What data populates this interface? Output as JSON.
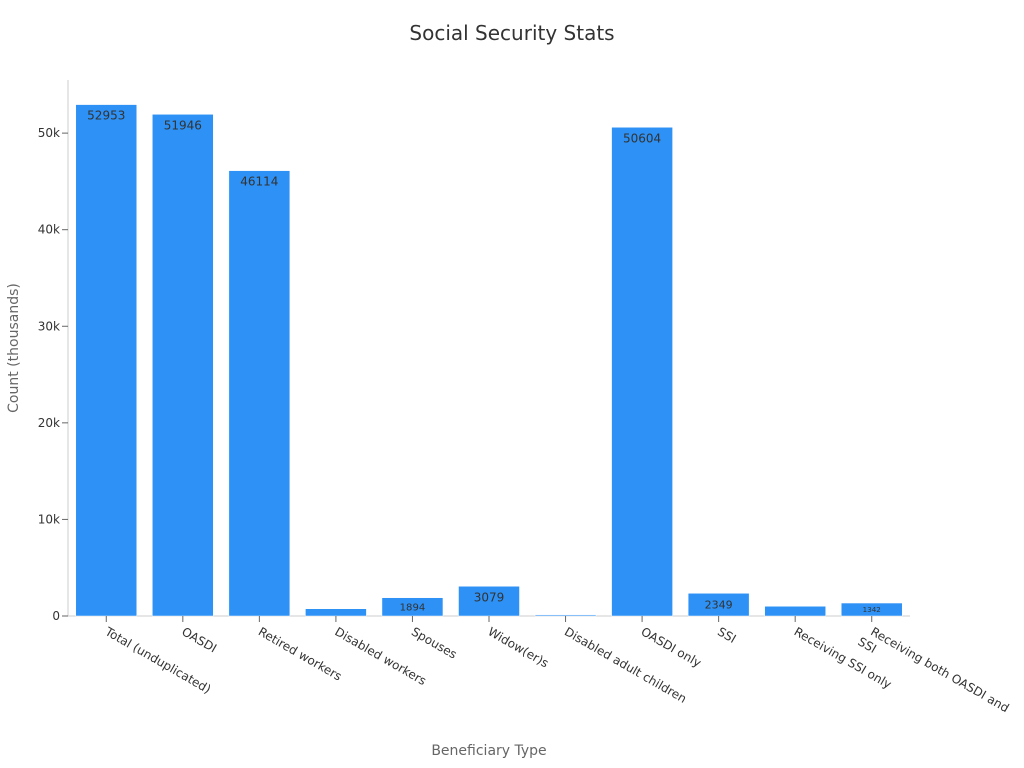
{
  "chart_data": {
    "type": "bar",
    "title": "Social Security Stats",
    "xlabel": "Beneficiary Type",
    "ylabel": "Count (thousands)",
    "ylim": [
      0,
      55500
    ],
    "yticks": [
      0,
      10000,
      20000,
      30000,
      40000,
      50000
    ],
    "ytick_labels": [
      "0",
      "10k",
      "20k",
      "30k",
      "40k",
      "50k"
    ],
    "bar_color": "#2d91f5",
    "grid": false,
    "categories": [
      "Total (unduplicated)",
      "OASDI",
      "Retired workers",
      "Disabled workers",
      "Spouses",
      "Widow(er)s",
      "Disabled adult children",
      "OASDI only",
      "SSI",
      "Receiving SSI only",
      "Receiving both OASDI and SSI"
    ],
    "category_lines": [
      [
        "Total (unduplicated)"
      ],
      [
        "OASDI"
      ],
      [
        "Retired workers"
      ],
      [
        "Disabled workers"
      ],
      [
        "Spouses"
      ],
      [
        "Widow(er)s"
      ],
      [
        "Disabled adult children"
      ],
      [
        "OASDI only"
      ],
      [
        "SSI"
      ],
      [
        "Receiving SSI only"
      ],
      [
        "Receiving both OASDI and",
        "SSI"
      ]
    ],
    "values": [
      52953,
      51946,
      46114,
      750,
      1894,
      3079,
      110,
      50604,
      2349,
      1007,
      1342
    ],
    "data_labels": [
      "52953",
      "51946",
      "46114",
      "",
      "1894",
      "3079",
      "",
      "50604",
      "2349",
      "",
      "1342"
    ]
  }
}
